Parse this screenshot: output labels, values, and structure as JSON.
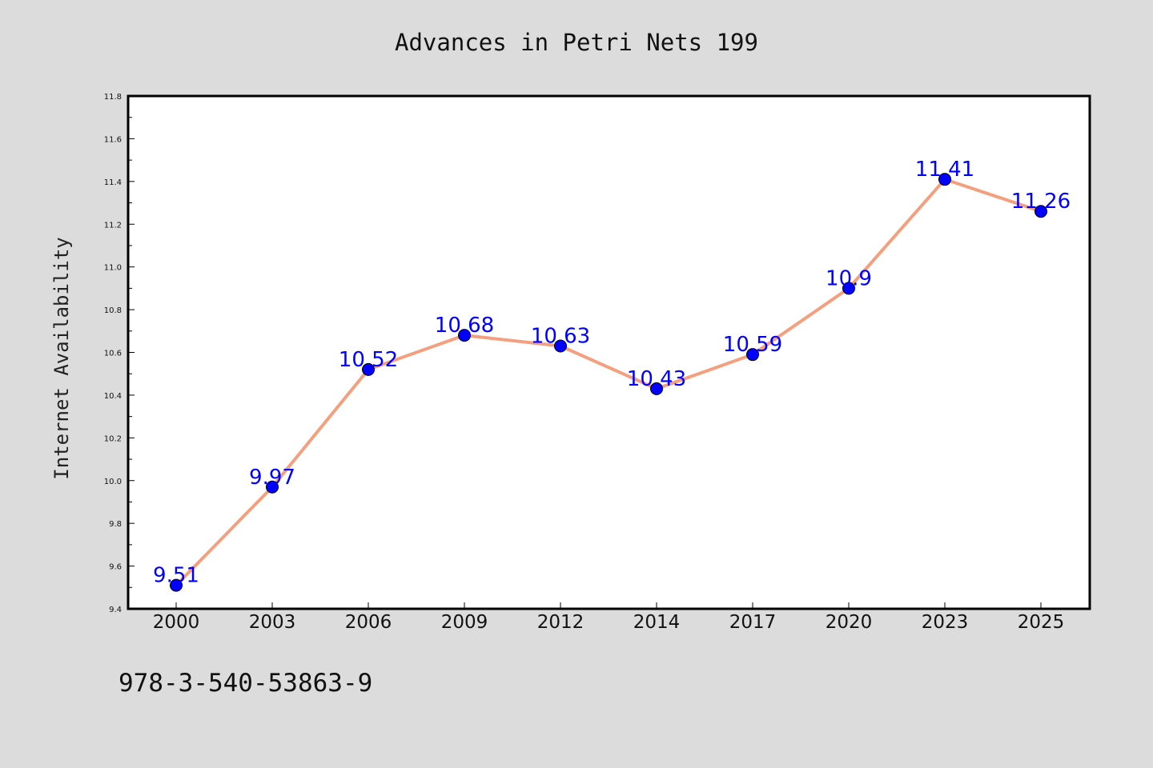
{
  "chart_data": {
    "type": "line",
    "title": "Advances in Petri Nets 199",
    "xlabel": "",
    "ylabel": "Internet Availability",
    "categories": [
      "2000",
      "2003",
      "2006",
      "2009",
      "2012",
      "2014",
      "2017",
      "2020",
      "2023",
      "2025"
    ],
    "values": [
      9.51,
      9.97,
      10.52,
      10.68,
      10.63,
      10.43,
      10.59,
      10.9,
      11.41,
      11.26
    ],
    "data_labels": [
      "9.51",
      "9.97",
      "10.52",
      "10.68",
      "10.63",
      "10.43",
      "10.59",
      "10.9",
      "11.41",
      "11.26"
    ],
    "ylim": [
      9.4,
      11.8
    ],
    "yticks": [
      "9.4",
      "9.6",
      "9.8",
      "10.0",
      "10.2",
      "10.4",
      "10.6",
      "10.8",
      "11.0",
      "11.2",
      "11.4",
      "11.6",
      "11.8"
    ],
    "grid": false,
    "legend": "none",
    "colors": {
      "line": "#f4a07e",
      "marker": "#0000ff",
      "data_label": "#0000ff",
      "figure_background": "#dcdcdc",
      "plot_background": "#ffffff"
    }
  },
  "footer": {
    "isbn": "978-3-540-53863-9"
  }
}
